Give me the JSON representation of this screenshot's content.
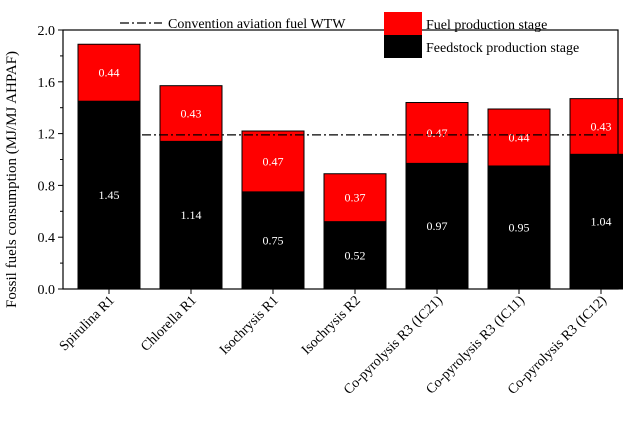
{
  "chart_data": {
    "type": "bar",
    "stacked": true,
    "ylabel": "Fossil fuels consumption (MJ/MJ AHPAF)",
    "xlabel": "",
    "ylim": [
      0,
      2.0
    ],
    "yticks": [
      0.0,
      0.4,
      0.8,
      1.2,
      1.6,
      2.0
    ],
    "ytick_labels": [
      "0.0",
      "0.4",
      "0.8",
      "1.2",
      "1.6",
      "2.0"
    ],
    "categories": [
      "Spirulina R1",
      "Chlorella R1",
      "Isochrysis R1",
      "Isochrysis R2",
      "Co-pyrolysis R3 (IC21)",
      "Co-pyrolysis R3 (IC11)",
      "Co-pyrolysis R3 (IC12)"
    ],
    "series": [
      {
        "name": "Feedstock production stage",
        "color": "#000000",
        "values": [
          1.45,
          1.14,
          0.75,
          0.52,
          0.97,
          0.95,
          1.04
        ],
        "labels": [
          "1.45",
          "1.14",
          "0.75",
          "0.52",
          "0.97",
          "0.95",
          "1.04"
        ]
      },
      {
        "name": "Fuel production stage",
        "color": "#ff0000",
        "values": [
          0.44,
          0.43,
          0.47,
          0.37,
          0.47,
          0.44,
          0.43
        ],
        "labels": [
          "0.44",
          "0.43",
          "0.47",
          "0.37",
          "0.47",
          "0.44",
          "0.43"
        ]
      }
    ],
    "reference_line": {
      "name": "Convention aviation fuel WTW",
      "value": 1.19,
      "style": "dash-dot"
    },
    "legend_position": "top",
    "grid": false
  }
}
